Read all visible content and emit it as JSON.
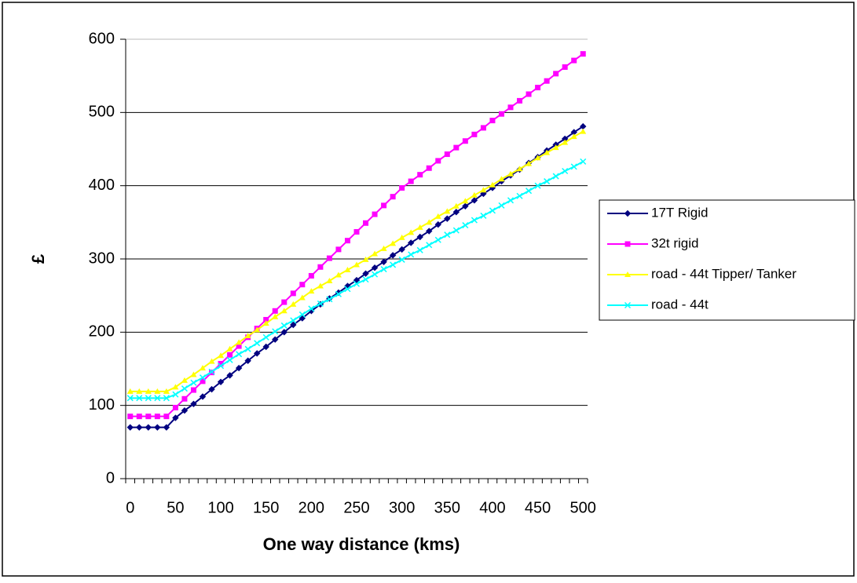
{
  "chart_data": {
    "type": "line",
    "x_label": "One way distance (kms)",
    "y_label": "£",
    "categories": [
      "0",
      null,
      null,
      null,
      null,
      "50",
      null,
      null,
      null,
      null,
      "100",
      null,
      null,
      null,
      null,
      "150",
      null,
      null,
      null,
      null,
      "200",
      null,
      null,
      null,
      null,
      "250",
      null,
      null,
      null,
      null,
      "300",
      null,
      null,
      null,
      null,
      "350",
      null,
      null,
      null,
      null,
      "400",
      null,
      null,
      null,
      null,
      "450",
      null,
      null,
      null,
      null,
      "500"
    ],
    "ylim": [
      0,
      600
    ],
    "yticks": [
      0,
      100,
      200,
      300,
      400,
      500,
      600
    ],
    "grid": true,
    "legend": "right",
    "series": [
      {
        "name": "17T Rigid",
        "color": "#000080",
        "marker": "diamond",
        "values": [
          70,
          70,
          70,
          70,
          70,
          83,
          93,
          102,
          112,
          122,
          132,
          141,
          151,
          161,
          171,
          180,
          190,
          200,
          210,
          219,
          229,
          238,
          246,
          254,
          263,
          271,
          280,
          288,
          296,
          305,
          313,
          322,
          330,
          338,
          347,
          355,
          364,
          372,
          380,
          389,
          397,
          406,
          414,
          422,
          431,
          439,
          448,
          456,
          464,
          473,
          481
        ]
      },
      {
        "name": "32t rigid",
        "color": "#ff00ff",
        "marker": "square",
        "values": [
          85,
          85,
          85,
          85,
          85,
          97,
          109,
          121,
          133,
          145,
          157,
          169,
          181,
          193,
          205,
          217,
          229,
          241,
          253,
          265,
          277,
          289,
          301,
          313,
          325,
          337,
          349,
          361,
          373,
          385,
          397,
          406,
          415,
          424,
          434,
          443,
          452,
          461,
          470,
          479,
          489,
          498,
          507,
          516,
          525,
          534,
          543,
          553,
          562,
          571,
          580
        ]
      },
      {
        "name": "road - 44t Tipper/ Tanker",
        "color": "#ffff00",
        "marker": "triangle",
        "values": [
          119,
          119,
          119,
          119,
          119,
          125,
          134,
          142,
          151,
          160,
          168,
          177,
          186,
          195,
          203,
          212,
          221,
          229,
          238,
          247,
          256,
          263,
          270,
          278,
          285,
          292,
          299,
          307,
          314,
          321,
          329,
          336,
          343,
          350,
          358,
          365,
          372,
          379,
          387,
          394,
          401,
          409,
          416,
          423,
          430,
          438,
          445,
          452,
          459,
          467,
          474
        ]
      },
      {
        "name": "road - 44t",
        "color": "#00ffff",
        "marker": "x",
        "values": [
          110,
          110,
          110,
          110,
          110,
          115,
          123,
          131,
          138,
          146,
          154,
          162,
          170,
          177,
          185,
          193,
          201,
          209,
          216,
          224,
          232,
          239,
          245,
          252,
          259,
          266,
          272,
          279,
          286,
          292,
          299,
          306,
          312,
          319,
          326,
          333,
          339,
          346,
          353,
          359,
          366,
          373,
          380,
          386,
          393,
          400,
          406,
          413,
          420,
          426,
          433
        ]
      }
    ]
  }
}
